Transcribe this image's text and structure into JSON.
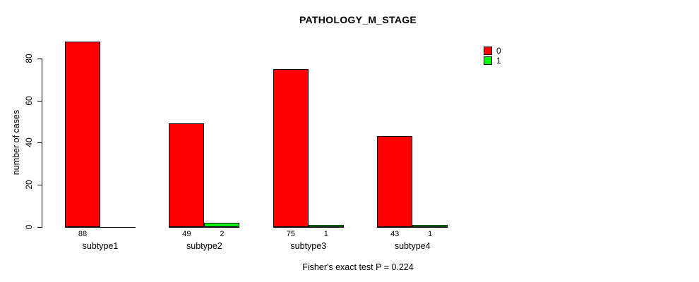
{
  "chart_data": {
    "type": "bar",
    "title": "PATHOLOGY_M_STAGE",
    "ylabel": "number of cases",
    "xlabel": "",
    "categories": [
      "subtype1",
      "subtype2",
      "subtype3",
      "subtype4"
    ],
    "series": [
      {
        "name": "0",
        "color": "#ff0000",
        "values": [
          88,
          49,
          75,
          43
        ]
      },
      {
        "name": "1",
        "color": "#00ff00",
        "values": [
          0,
          2,
          1,
          1
        ]
      }
    ],
    "yticks": [
      0,
      20,
      40,
      60,
      80
    ],
    "ylim": [
      0,
      88
    ],
    "grid": false,
    "legend_position": "top-right",
    "bar_value_labels_visible": true,
    "annotation": "Fisher's exact test P = 0.224"
  }
}
